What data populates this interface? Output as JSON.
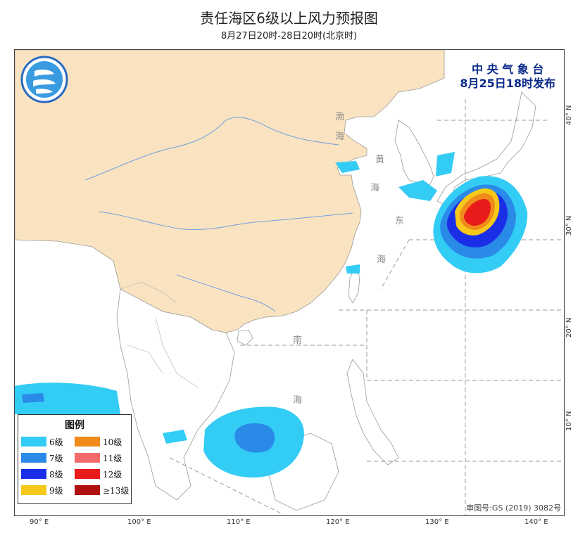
{
  "title": "责任海区6级以上风力预报图",
  "subtitle": "8月27日20时-28日20时(北京时)",
  "publisher": {
    "line1": "中 央 气 象 台",
    "line2": "8月25日18时发布"
  },
  "approval_number": "审图号:GS (2019) 3082号",
  "sea_labels": {
    "bohai": [
      "渤",
      "海"
    ],
    "yellow_sea": [
      "黄",
      "海"
    ],
    "east_sea": [
      "东",
      "海"
    ],
    "south_sea": [
      "南",
      "海"
    ]
  },
  "latitude_labels": [
    "40° N",
    "30° N",
    "20° N",
    "10° N"
  ],
  "longitude_labels": [
    "90° E",
    "100° E",
    "110° E",
    "120° E",
    "130° E",
    "140° E"
  ],
  "legend": {
    "title": "图例",
    "items": [
      {
        "label": "6级",
        "color": "#33ccf5"
      },
      {
        "label": "10级",
        "color": "#f08a1a"
      },
      {
        "label": "7级",
        "color": "#2a8ae8"
      },
      {
        "label": "11级",
        "color": "#f26a6a"
      },
      {
        "label": "8级",
        "color": "#1a2ee8"
      },
      {
        "label": "12级",
        "color": "#e81a1a"
      },
      {
        "label": "9级",
        "color": "#f5c81a"
      },
      {
        "label": "≥13级",
        "color": "#b01010"
      }
    ]
  },
  "colors": {
    "land": "#fae3c0",
    "sea": "#ffffff",
    "river": "#6fa0e0",
    "grid": "#999999",
    "publisher": "#0a2a8a"
  },
  "icons": {
    "logo": "cma-logo"
  }
}
